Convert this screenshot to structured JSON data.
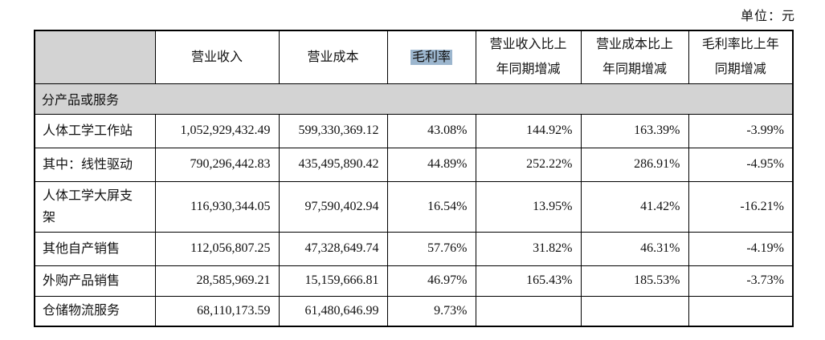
{
  "unit_label": "单位：元",
  "colors": {
    "section_row_bg": "#d3d3d3",
    "header_empty_cell_bg": "#d3d3d3",
    "highlight_bg": "#9cb6ce",
    "border": "#000000"
  },
  "table": {
    "headers": [
      "",
      "营业收入",
      "营业成本",
      "毛利率",
      "营业收入比上年同期增减",
      "营业成本比上年同期增减",
      "毛利率比上年同期增减"
    ],
    "section_label": "分产品或服务",
    "rows": [
      {
        "cells": [
          "人体工学工作站",
          "1,052,929,432.49",
          "599,330,369.12",
          "43.08%",
          "144.92%",
          "163.39%",
          "-3.99%"
        ]
      },
      {
        "cells": [
          "其中：线性驱动",
          "790,296,442.83",
          "435,495,890.42",
          "44.89%",
          "252.22%",
          "286.91%",
          "-4.95%"
        ]
      },
      {
        "cells": [
          "人体工学大屏支架",
          "116,930,344.05",
          "97,590,402.94",
          "16.54%",
          "13.95%",
          "41.42%",
          "-16.21%"
        ]
      },
      {
        "cells": [
          "其他自产销售",
          "112,056,807.25",
          "47,328,649.74",
          "57.76%",
          "31.82%",
          "46.31%",
          "-4.19%"
        ]
      },
      {
        "cells": [
          "外购产品销售",
          "28,585,969.21",
          "15,159,666.81",
          "46.97%",
          "165.43%",
          "185.53%",
          "-3.73%"
        ]
      },
      {
        "cells": [
          "仓储物流服务",
          "68,110,173.59",
          "61,480,646.99",
          "9.73%",
          "",
          "",
          ""
        ]
      }
    ]
  }
}
